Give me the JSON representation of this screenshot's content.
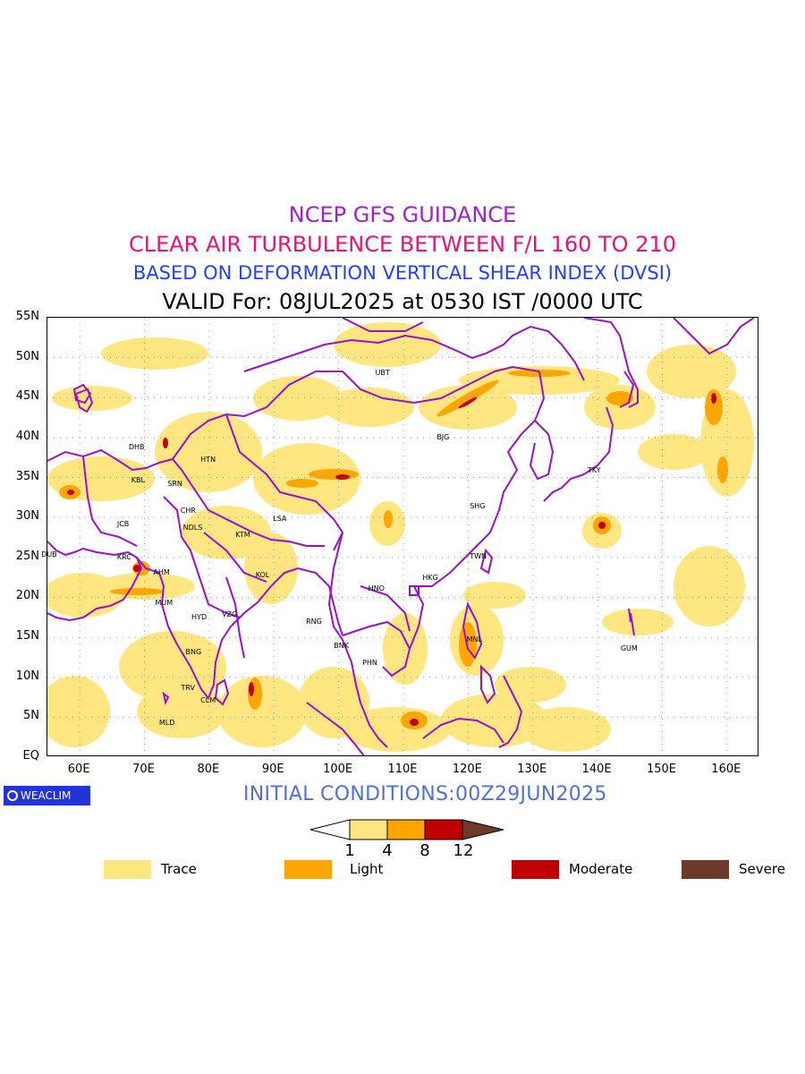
{
  "title": {
    "line1": "NCEP GFS GUIDANCE",
    "line2": "CLEAR AIR TURBULENCE BETWEEN F/L 160 TO 210",
    "line3": "BASED ON DEFORMATION VERTICAL SHEAR INDEX (DVSI)",
    "line4": "VALID For: 08JUL2025 at 0530 IST /0000 UTC"
  },
  "map": {
    "lon_range": [
      55,
      165
    ],
    "lat_range": [
      0,
      55
    ],
    "lat_ticks": [
      "55N",
      "50N",
      "45N",
      "40N",
      "35N",
      "30N",
      "25N",
      "20N",
      "15N",
      "10N",
      "5N",
      "EQ"
    ],
    "lon_ticks": [
      "60E",
      "70E",
      "80E",
      "90E",
      "100E",
      "110E",
      "120E",
      "130E",
      "140E",
      "150E",
      "160E"
    ],
    "cities": [
      {
        "code": "UBT",
        "lon": 106.9,
        "lat": 47.9
      },
      {
        "code": "BJG",
        "lon": 116.4,
        "lat": 39.9
      },
      {
        "code": "TKY",
        "lon": 139.7,
        "lat": 35.7
      },
      {
        "code": "SHG",
        "lon": 121.5,
        "lat": 31.2
      },
      {
        "code": "TWN",
        "lon": 121.5,
        "lat": 25.0
      },
      {
        "code": "HKG",
        "lon": 114.2,
        "lat": 22.3
      },
      {
        "code": "HNO",
        "lon": 105.8,
        "lat": 21.0
      },
      {
        "code": "MNL",
        "lon": 121.0,
        "lat": 14.6
      },
      {
        "code": "GUM",
        "lon": 144.8,
        "lat": 13.4
      },
      {
        "code": "BNK",
        "lon": 100.5,
        "lat": 13.8
      },
      {
        "code": "PHN",
        "lon": 104.9,
        "lat": 11.6
      },
      {
        "code": "RNG",
        "lon": 96.2,
        "lat": 16.8
      },
      {
        "code": "KOL",
        "lon": 88.4,
        "lat": 22.6
      },
      {
        "code": "KTM",
        "lon": 85.3,
        "lat": 27.7
      },
      {
        "code": "LSA",
        "lon": 91.1,
        "lat": 29.7
      },
      {
        "code": "NDLS",
        "lon": 77.2,
        "lat": 28.6
      },
      {
        "code": "CHR",
        "lon": 76.8,
        "lat": 30.7
      },
      {
        "code": "SRN",
        "lon": 74.8,
        "lat": 34.1
      },
      {
        "code": "KBL",
        "lon": 69.2,
        "lat": 34.5
      },
      {
        "code": "DHB",
        "lon": 68.8,
        "lat": 38.6
      },
      {
        "code": "HTN",
        "lon": 79.9,
        "lat": 37.1
      },
      {
        "code": "JCB",
        "lon": 67.0,
        "lat": 29.0
      },
      {
        "code": "KRC",
        "lon": 67.0,
        "lat": 24.9
      },
      {
        "code": "AHM",
        "lon": 72.6,
        "lat": 23.0
      },
      {
        "code": "DUB",
        "lon": 55.3,
        "lat": 25.2
      },
      {
        "code": "MUM",
        "lon": 72.9,
        "lat": 19.1
      },
      {
        "code": "HYD",
        "lon": 78.5,
        "lat": 17.4
      },
      {
        "code": "VZG",
        "lon": 83.2,
        "lat": 17.7
      },
      {
        "code": "BNG",
        "lon": 77.6,
        "lat": 13.0
      },
      {
        "code": "TRV",
        "lon": 76.9,
        "lat": 8.5
      },
      {
        "code": "CLM",
        "lon": 79.9,
        "lat": 6.9
      },
      {
        "code": "MLD",
        "lon": 73.5,
        "lat": 4.2
      }
    ]
  },
  "footer": {
    "logo_text": "WEACLIM",
    "initial_conditions": "INITIAL CONDITIONS:00Z29JUN2025"
  },
  "colorbar": {
    "labels": [
      "1",
      "4",
      "8",
      "12"
    ],
    "colors": [
      "#ffe680",
      "#ffa500",
      "#c00000",
      "#6b3a28"
    ]
  },
  "legend": [
    {
      "label": "Trace",
      "color": "#ffe680"
    },
    {
      "label": "Light",
      "color": "#ffa500"
    },
    {
      "label": "Moderate",
      "color": "#c00000"
    },
    {
      "label": "Severe",
      "color": "#6b3a28"
    }
  ],
  "colors": {
    "coast": "#9b10c8",
    "trace": "#ffe680",
    "light": "#ffa500",
    "moderate": "#c00000"
  }
}
